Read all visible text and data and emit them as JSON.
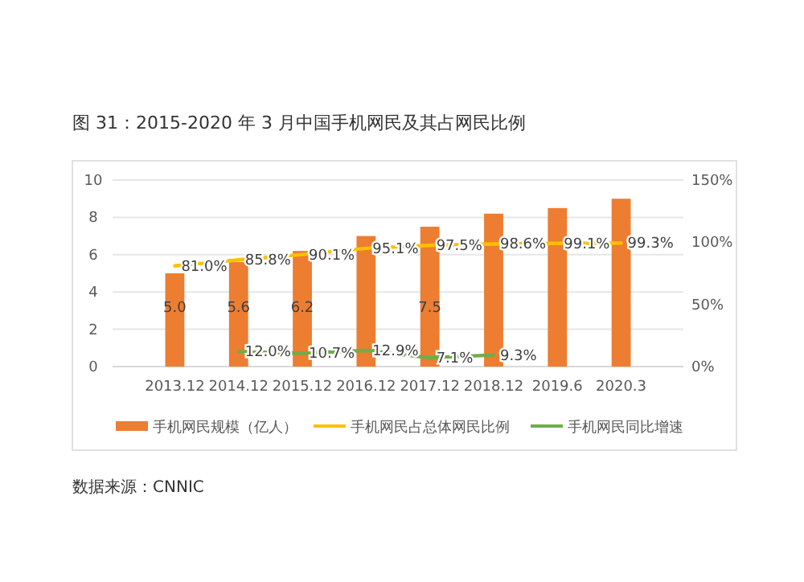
{
  "chart_data": {
    "type": "bar",
    "title": "图 31：2015-2020 年 3 月中国手机网民及其占网民比例",
    "categories": [
      "2013.12",
      "2014.12",
      "2015.12",
      "2016.12",
      "2017.12",
      "2018.12",
      "2019.6",
      "2020.3"
    ],
    "series": [
      {
        "name": "手机网民规模（亿人）",
        "color": "#ed7d31",
        "values": [
          5.0,
          5.6,
          6.2,
          7.0,
          7.5,
          8.2,
          8.5,
          9.0
        ],
        "value_labels": [
          "5.0",
          "5.6",
          "6.2",
          null,
          "7.5",
          null,
          null,
          null
        ]
      },
      {
        "name": "手机网民占总体网民比例",
        "type": "line",
        "axis": "y2",
        "color": "#ffc000",
        "values": [
          81.0,
          85.8,
          90.1,
          95.1,
          97.5,
          98.6,
          99.1,
          99.3
        ],
        "value_labels": [
          "81.0%",
          "85.8%",
          "90.1%",
          "95.1%",
          "97.5%",
          "98.6%",
          "99.1%",
          "99.3%"
        ]
      },
      {
        "name": "手机网民同比增速",
        "type": "line",
        "axis": "y2",
        "color": "#70ad47",
        "values": [
          null,
          12.0,
          10.7,
          12.9,
          7.1,
          9.3,
          null,
          null
        ],
        "value_labels": [
          null,
          "12.0%",
          "10.7%",
          "12.9%",
          "7.1%",
          "9.3%",
          null,
          null
        ]
      }
    ],
    "ylim": [
      0,
      10
    ],
    "yticks": [
      0,
      2,
      4,
      6,
      8,
      10
    ],
    "y2lim": [
      0,
      150
    ],
    "y2ticks": [
      {
        "value": 0,
        "label": "0%"
      },
      {
        "value": 50,
        "label": "50%"
      },
      {
        "value": 100,
        "label": "100%"
      },
      {
        "value": 150,
        "label": "150%"
      }
    ],
    "grid": "y",
    "legend": "bottom",
    "annotations": [
      "数据来源：CNNIC"
    ]
  }
}
